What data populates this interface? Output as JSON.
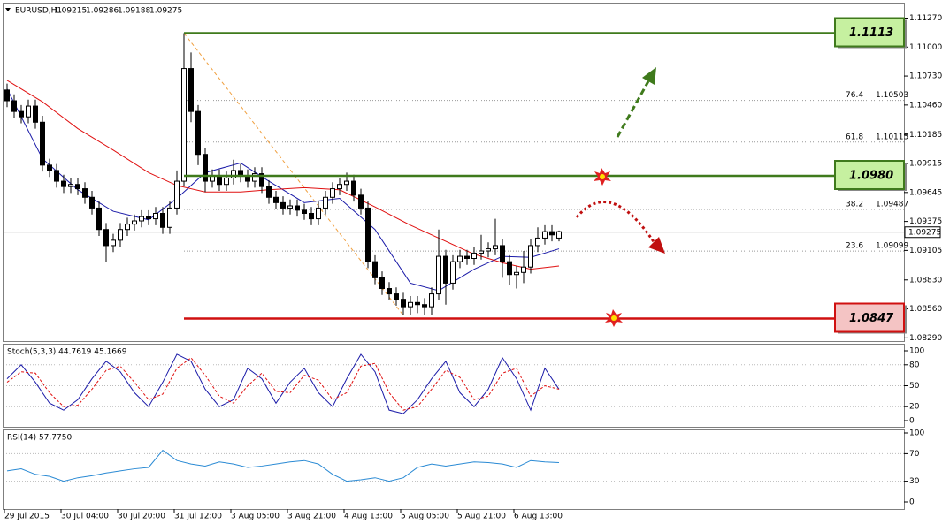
{
  "chart_data": {
    "type": "candlestick",
    "symbol": "EURUSD,H1",
    "ohlc_header": [
      {
        "value": 1.09215,
        "label": "1.09215"
      },
      {
        "value": 1.09286,
        "label": "1.09286"
      },
      {
        "value": 1.09188,
        "label": "1.09188"
      },
      {
        "value": 1.09275,
        "label": "1.09275"
      }
    ],
    "candles": [
      [
        1.106,
        1.1066,
        1.1044,
        1.105
      ],
      [
        1.105,
        1.1056,
        1.1034,
        1.104
      ],
      [
        1.104,
        1.1046,
        1.1029,
        1.1035
      ],
      [
        1.1035,
        1.1051,
        1.1029,
        1.1045
      ],
      [
        1.1045,
        1.1051,
        1.1024,
        1.103
      ],
      [
        1.103,
        1.1036,
        1.0984,
        1.099
      ],
      [
        1.099,
        1.0996,
        1.0979,
        1.0985
      ],
      [
        1.0985,
        1.0991,
        1.0969,
        1.0975
      ],
      [
        1.0975,
        1.0981,
        1.0964,
        1.097
      ],
      [
        1.097,
        1.0978,
        1.0964,
        1.0972
      ],
      [
        1.0972,
        1.0978,
        1.0962,
        1.0968
      ],
      [
        1.0968,
        1.0974,
        1.0954,
        1.096
      ],
      [
        1.096,
        1.0966,
        1.0944,
        1.095
      ],
      [
        1.095,
        1.0956,
        1.0924,
        1.093
      ],
      [
        1.093,
        1.0936,
        1.09,
        1.0915
      ],
      [
        1.0915,
        1.0926,
        1.0909,
        1.092
      ],
      [
        1.092,
        1.0936,
        1.0914,
        1.093
      ],
      [
        1.093,
        1.0941,
        1.0924,
        1.0935
      ],
      [
        1.0935,
        1.0944,
        1.0929,
        1.0938
      ],
      [
        1.0938,
        1.0948,
        1.0932,
        1.0942
      ],
      [
        1.0942,
        1.0948,
        1.0934,
        1.094
      ],
      [
        1.094,
        1.0951,
        1.0934,
        1.0945
      ],
      [
        1.0945,
        1.0951,
        1.0926,
        1.0932
      ],
      [
        1.0932,
        1.0956,
        1.0926,
        1.095
      ],
      [
        1.095,
        1.0985,
        1.0944,
        1.0975
      ],
      [
        1.0975,
        1.1113,
        1.097,
        1.108
      ],
      [
        1.108,
        1.1095,
        1.103,
        1.104
      ],
      [
        1.104,
        1.1046,
        1.099,
        1.1
      ],
      [
        1.1,
        1.1006,
        1.0965,
        1.0975
      ],
      [
        1.0975,
        1.0986,
        1.0969,
        1.098
      ],
      [
        1.098,
        1.0986,
        1.0966,
        1.0972
      ],
      [
        1.0972,
        1.0984,
        1.0966,
        1.0978
      ],
      [
        1.0978,
        1.0995,
        1.0972,
        1.0985
      ],
      [
        1.0985,
        1.0991,
        1.0974,
        1.098
      ],
      [
        1.098,
        1.0986,
        1.0969,
        1.0975
      ],
      [
        1.0975,
        1.0988,
        1.0969,
        1.0982
      ],
      [
        1.0982,
        1.0988,
        1.0964,
        1.097
      ],
      [
        1.097,
        1.0976,
        1.0954,
        1.096
      ],
      [
        1.096,
        1.0966,
        1.0949,
        1.0955
      ],
      [
        1.0955,
        1.0961,
        1.0944,
        1.095
      ],
      [
        1.095,
        1.0958,
        1.0944,
        1.0952
      ],
      [
        1.0952,
        1.0958,
        1.0942,
        1.0948
      ],
      [
        1.0948,
        1.0954,
        1.0939,
        1.0945
      ],
      [
        1.0945,
        1.0951,
        1.0934,
        1.094
      ],
      [
        1.094,
        1.0956,
        1.0934,
        1.095
      ],
      [
        1.095,
        1.0966,
        1.0944,
        1.096
      ],
      [
        1.096,
        1.0974,
        1.0954,
        1.0968
      ],
      [
        1.0968,
        1.0978,
        1.0962,
        1.0972
      ],
      [
        1.0972,
        1.0983,
        1.0966,
        1.0975
      ],
      [
        1.0975,
        1.0981,
        1.0956,
        1.0962
      ],
      [
        1.0962,
        1.0968,
        1.0944,
        1.095
      ],
      [
        1.095,
        1.0956,
        1.0894,
        1.09
      ],
      [
        1.09,
        1.0906,
        1.0879,
        1.0885
      ],
      [
        1.0885,
        1.0891,
        1.0869,
        1.0875
      ],
      [
        1.0875,
        1.0881,
        1.0864,
        1.087
      ],
      [
        1.087,
        1.0876,
        1.0859,
        1.0865
      ],
      [
        1.0865,
        1.0871,
        1.085,
        1.0858
      ],
      [
        1.0858,
        1.0868,
        1.085,
        1.0862
      ],
      [
        1.0862,
        1.0868,
        1.0852,
        1.086
      ],
      [
        1.086,
        1.0866,
        1.085,
        1.0858
      ],
      [
        1.0858,
        1.0876,
        1.085,
        1.087
      ],
      [
        1.087,
        1.093,
        1.0864,
        1.0905
      ],
      [
        1.0905,
        1.0911,
        1.086,
        1.088
      ],
      [
        1.088,
        1.0906,
        1.0874,
        1.09
      ],
      [
        1.09,
        1.0911,
        1.0894,
        1.0905
      ],
      [
        1.0905,
        1.0911,
        1.0897,
        1.0903
      ],
      [
        1.0903,
        1.0914,
        1.0897,
        1.0908
      ],
      [
        1.0908,
        1.0925,
        1.0902,
        1.091
      ],
      [
        1.091,
        1.0918,
        1.0904,
        1.0912
      ],
      [
        1.0912,
        1.094,
        1.0906,
        1.0915
      ],
      [
        1.0915,
        1.0921,
        1.0885,
        1.09
      ],
      [
        1.09,
        1.0906,
        1.0878,
        1.0888
      ],
      [
        1.0888,
        1.0896,
        1.0875,
        1.089
      ],
      [
        1.089,
        1.091,
        1.088,
        1.0895
      ],
      [
        1.0895,
        1.0921,
        1.0889,
        1.0915
      ],
      [
        1.0915,
        1.0932,
        1.0909,
        1.0922
      ],
      [
        1.0922,
        1.0934,
        1.0916,
        1.0928
      ],
      [
        1.0928,
        1.0934,
        1.0919,
        1.0925
      ],
      [
        1.0922,
        1.0929,
        1.0919,
        1.0928
      ]
    ],
    "ylim": [
      1.0826,
      1.1134
    ],
    "yticks": [
      {
        "value": 1.1127,
        "label": "1.11270"
      },
      {
        "value": 1.11,
        "label": "1.11000"
      },
      {
        "value": 1.1073,
        "label": "1.10730"
      },
      {
        "value": 1.1046,
        "label": "1.10460"
      },
      {
        "value": 1.10185,
        "label": "1.10185"
      },
      {
        "value": 1.09915,
        "label": "1.09915"
      },
      {
        "value": 1.09645,
        "label": "1.09645"
      },
      {
        "value": 1.09375,
        "label": "1.09375"
      },
      {
        "value": 1.09105,
        "label": "1.09105"
      },
      {
        "value": 1.0883,
        "label": "1.08830"
      },
      {
        "value": 1.0856,
        "label": "1.08560"
      },
      {
        "value": 1.0829,
        "label": "1.08290"
      }
    ],
    "current_price": {
      "value": 1.09275,
      "label": "1.09275"
    },
    "moving_averages": [
      {
        "color": "#1a1aa8",
        "x": [
          0,
          5,
          10,
          15,
          20,
          24,
          28,
          33,
          37,
          42,
          47,
          52,
          57,
          61,
          66,
          70,
          74,
          78
        ],
        "values": [
          1.1061,
          1.0996,
          1.0967,
          1.0947,
          1.0939,
          1.0959,
          1.0983,
          1.0992,
          1.0975,
          1.0955,
          1.0959,
          1.093,
          1.088,
          1.0873,
          1.0893,
          1.0905,
          1.0904,
          1.0912
        ]
      },
      {
        "color": "#e01010",
        "x": [
          0,
          5,
          10,
          15,
          20,
          24,
          28,
          33,
          37,
          42,
          47,
          52,
          57,
          61,
          66,
          70,
          74,
          78
        ],
        "values": [
          1.1069,
          1.1049,
          1.1024,
          1.1004,
          1.0983,
          1.0971,
          1.0965,
          1.0965,
          1.0967,
          1.0969,
          1.0967,
          1.0951,
          1.0934,
          1.0922,
          1.0907,
          1.0899,
          1.0893,
          1.0896
        ]
      }
    ],
    "levels": [
      {
        "value": 1.1113,
        "label": "1.1113",
        "color": "#3f7a1c",
        "box": "#c6f0a0"
      },
      {
        "value": 1.098,
        "label": "1.0980",
        "color": "#3f7a1c",
        "box": "#c6f0a0"
      },
      {
        "value": 1.0847,
        "label": "1.0847",
        "color": "#d01010",
        "box": "#f4c4c4"
      }
    ],
    "fib_levels": [
      {
        "ratio": 76.4,
        "value": 1.10503,
        "label": "1.10503"
      },
      {
        "ratio": 61.8,
        "value": 1.10115,
        "label": "1.10115"
      },
      {
        "ratio": 38.2,
        "value": 1.09487,
        "label": "1.09487"
      },
      {
        "ratio": 23.6,
        "value": 1.09099,
        "label": "1.09099"
      }
    ],
    "x_labels": [
      "29 Jul 2015",
      "30 Jul 04:00",
      "30 Jul 20:00",
      "31 Jul 12:00",
      "3 Aug 05:00",
      "3 Aug 21:00",
      "4 Aug 13:00",
      "5 Aug 05:00",
      "5 Aug 21:00",
      "6 Aug 13:00"
    ],
    "indicators": [
      {
        "title": "Stoch(5,3,3) 44.7619 45.1669",
        "ylim": [
          0,
          100
        ],
        "yticks": [
          0,
          20,
          50,
          80,
          100
        ],
        "series": [
          {
            "color": "#1a1aa8",
            "values": [
              60,
              80,
              55,
              25,
              15,
              30,
              60,
              85,
              70,
              40,
              20,
              55,
              95,
              85,
              45,
              20,
              30,
              75,
              60,
              25,
              55,
              75,
              40,
              20,
              60,
              95,
              70,
              15,
              10,
              30,
              60,
              85,
              40,
              20,
              45,
              90,
              60,
              15,
              75,
              45
            ]
          },
          {
            "color": "#e01010",
            "dashed": true,
            "values": [
              55,
              70,
              68,
              40,
              20,
              22,
              45,
              72,
              78,
              55,
              30,
              38,
              75,
              90,
              65,
              35,
              25,
              50,
              68,
              42,
              40,
              65,
              58,
              30,
              40,
              78,
              82,
              40,
              15,
              20,
              45,
              72,
              62,
              30,
              35,
              68,
              75,
              35,
              50,
              45
            ]
          }
        ]
      },
      {
        "title": "RSI(14) 57.7750",
        "ylim": [
          0,
          100
        ],
        "yticks": [
          0,
          30,
          70,
          100
        ],
        "series": [
          {
            "color": "#2a8ad4",
            "values": [
              45,
              48,
              40,
              37,
              30,
              35,
              38,
              42,
              45,
              48,
              50,
              75,
              60,
              55,
              52,
              58,
              55,
              50,
              52,
              55,
              58,
              60,
              55,
              40,
              30,
              32,
              35,
              30,
              35,
              50,
              55,
              52,
              55,
              58,
              57,
              55,
              50,
              60,
              58,
              57
            ]
          }
        ]
      }
    ]
  }
}
